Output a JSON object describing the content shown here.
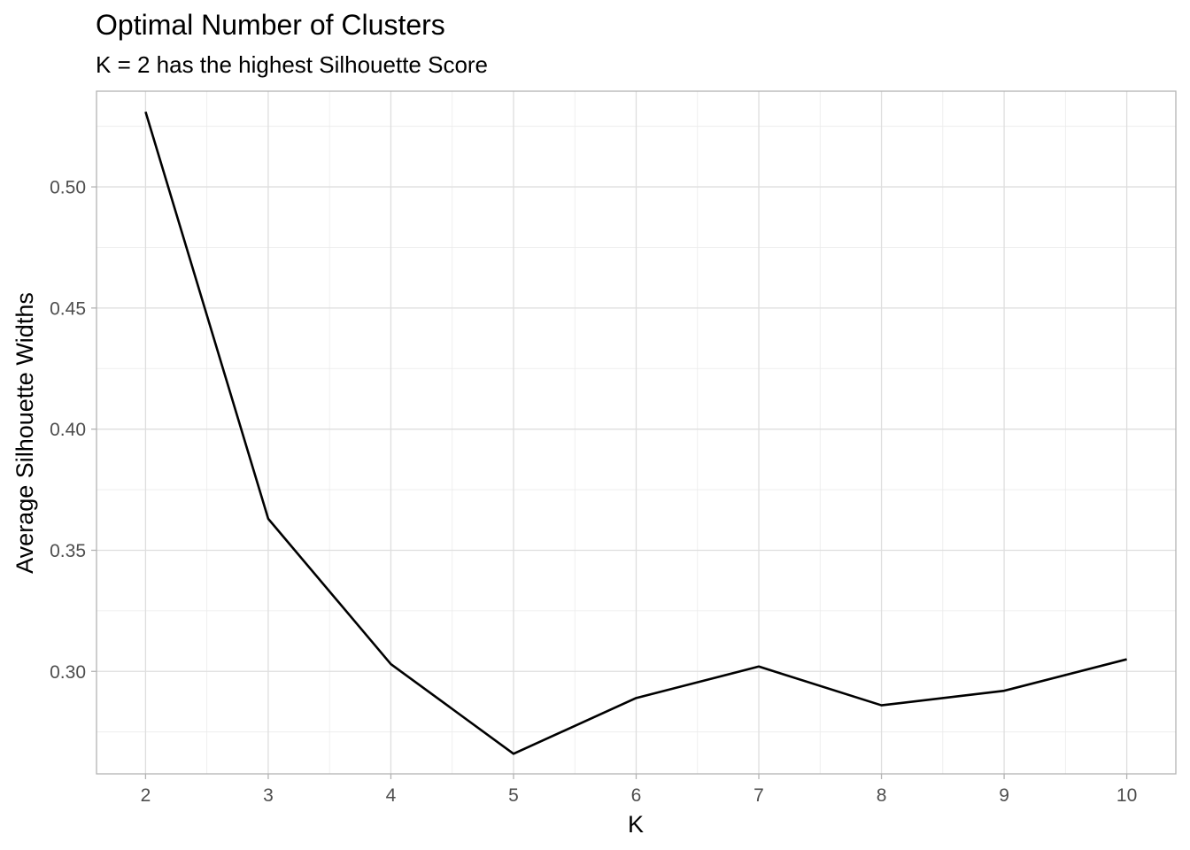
{
  "chart_data": {
    "type": "line",
    "title": "Optimal Number of Clusters",
    "subtitle": "K = 2 has the highest Silhouette Score",
    "xlabel": "K",
    "ylabel": "Average Silhouette Widths",
    "x": [
      2,
      3,
      4,
      5,
      6,
      7,
      8,
      9,
      10
    ],
    "x_ticks": [
      "2",
      "3",
      "4",
      "5",
      "6",
      "7",
      "8",
      "9",
      "10"
    ],
    "y_ticks": [
      "0.30",
      "0.35",
      "0.40",
      "0.45",
      "0.50"
    ],
    "series": [
      {
        "values": [
          0.531,
          0.363,
          0.303,
          0.266,
          0.289,
          0.302,
          0.286,
          0.292,
          0.305
        ]
      }
    ],
    "xlim": [
      1.6,
      10.4
    ],
    "ylim": [
      0.2577,
      0.5395
    ],
    "grid": true,
    "line_color": "#000000"
  }
}
